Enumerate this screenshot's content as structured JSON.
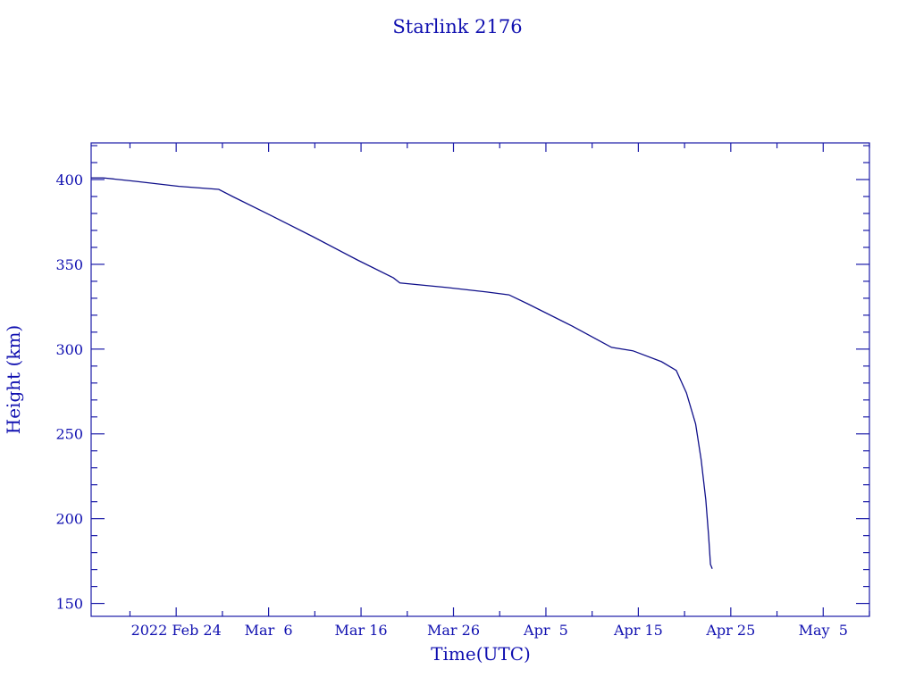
{
  "colors": {
    "axis": "#1a1aa8",
    "line": "#10108a",
    "text": "#1010b0"
  },
  "chart_data": {
    "type": "line",
    "title": "Starlink 2176",
    "xlabel": "Time(UTC)",
    "ylabel": "Height (km)",
    "x_units": "days since 2022 Feb 24",
    "xlim": [
      -9.2,
      75.0
    ],
    "ylim": [
      142.4,
      421.6
    ],
    "grid": false,
    "x_ticks": [
      {
        "value": 0,
        "label": "2022 Feb 24"
      },
      {
        "value": 10,
        "label": "Mar  6"
      },
      {
        "value": 20,
        "label": "Mar 16"
      },
      {
        "value": 30,
        "label": "Mar 26"
      },
      {
        "value": 40,
        "label": "Apr  5"
      },
      {
        "value": 50,
        "label": "Apr 15"
      },
      {
        "value": 60,
        "label": "Apr 25"
      },
      {
        "value": 70,
        "label": "May  5"
      }
    ],
    "x_minor_step": 5,
    "y_ticks": [
      150,
      200,
      250,
      300,
      350,
      400
    ],
    "y_minor_step": 10,
    "series": [
      {
        "name": "Height",
        "x": [
          -9.2,
          -7.9,
          -4.5,
          0.3,
          4.6,
          6.1,
          10,
          14.8,
          19.6,
          23.5,
          24.2,
          29.3,
          33.6,
          36,
          38,
          42.8,
          47.1,
          49.4,
          52.5,
          54.1,
          55.2,
          56.2,
          56.8,
          57.3,
          57.6,
          57.8,
          58.0
        ],
        "y": [
          401,
          401,
          399,
          396,
          394.2,
          390,
          379.5,
          366.3,
          352.6,
          342,
          339,
          336.3,
          333.7,
          332,
          326.8,
          313.7,
          301,
          299,
          292.6,
          287.4,
          274.2,
          255.8,
          234.7,
          211,
          190,
          173,
          170.5
        ]
      }
    ]
  }
}
